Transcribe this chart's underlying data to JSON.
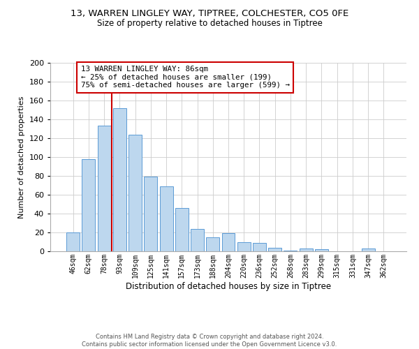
{
  "title_line1": "13, WARREN LINGLEY WAY, TIPTREE, COLCHESTER, CO5 0FE",
  "title_line2": "Size of property relative to detached houses in Tiptree",
  "xlabel": "Distribution of detached houses by size in Tiptree",
  "ylabel": "Number of detached properties",
  "bar_labels": [
    "46sqm",
    "62sqm",
    "78sqm",
    "93sqm",
    "109sqm",
    "125sqm",
    "141sqm",
    "157sqm",
    "173sqm",
    "188sqm",
    "204sqm",
    "220sqm",
    "236sqm",
    "252sqm",
    "268sqm",
    "283sqm",
    "299sqm",
    "315sqm",
    "331sqm",
    "347sqm",
    "362sqm"
  ],
  "bar_values": [
    20,
    98,
    133,
    152,
    124,
    79,
    69,
    46,
    24,
    15,
    19,
    10,
    9,
    4,
    1,
    3,
    2,
    0,
    0,
    3,
    0
  ],
  "bar_color": "#bdd7ee",
  "bar_edge_color": "#5b9bd5",
  "ylim": [
    0,
    200
  ],
  "yticks": [
    0,
    20,
    40,
    60,
    80,
    100,
    120,
    140,
    160,
    180,
    200
  ],
  "vline_x_index": 2,
  "vline_color": "#cc0000",
  "annotation_text": "13 WARREN LINGLEY WAY: 86sqm\n← 25% of detached houses are smaller (199)\n75% of semi-detached houses are larger (599) →",
  "annotation_box_color": "#cc0000",
  "footer_line1": "Contains HM Land Registry data © Crown copyright and database right 2024.",
  "footer_line2": "Contains public sector information licensed under the Open Government Licence v3.0.",
  "background_color": "#ffffff",
  "grid_color": "#cccccc"
}
